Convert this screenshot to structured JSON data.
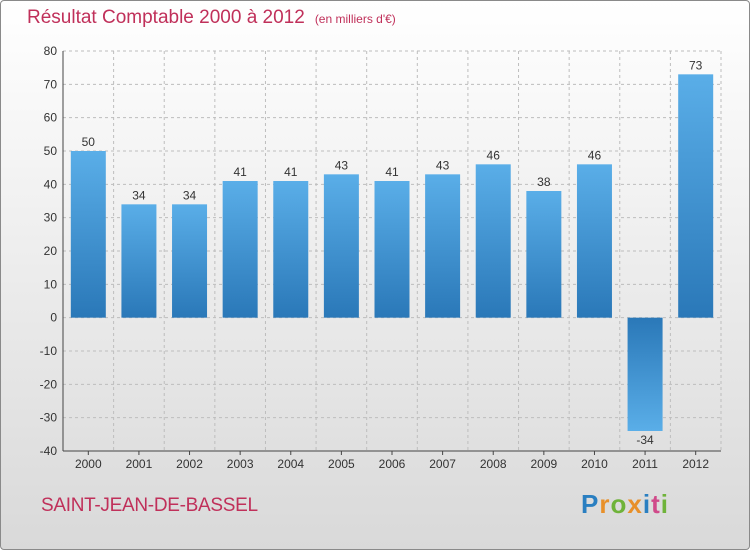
{
  "header": {
    "title": "Résultat Comptable 2000 à 2012",
    "unit": "(en milliers d'€)"
  },
  "footer": {
    "commune": "SAINT-JEAN-DE-BASSEL",
    "logo_text": "Proxiti",
    "logo_letters": [
      {
        "ch": "P",
        "color": "#2a7fc1"
      },
      {
        "ch": "r",
        "color": "#e8902a"
      },
      {
        "ch": "o",
        "color": "#6fb33a"
      },
      {
        "ch": "x",
        "color": "#e8902a"
      },
      {
        "ch": "i",
        "color": "#2a7fc1"
      },
      {
        "ch": "t",
        "color": "#d04a8a"
      },
      {
        "ch": "i",
        "color": "#6fb33a"
      }
    ]
  },
  "colors": {
    "title": "#c0305a",
    "bar_light": "#5aaee8",
    "bar_dark": "#2a78b8",
    "grid": "#bdbdbd"
  },
  "chart_data": {
    "type": "bar",
    "title": "Résultat Comptable 2000 à 2012",
    "ylabel": "en milliers d'€",
    "xlabel": "",
    "categories": [
      "2000",
      "2001",
      "2002",
      "2003",
      "2004",
      "2005",
      "2006",
      "2007",
      "2008",
      "2009",
      "2010",
      "2011",
      "2012"
    ],
    "values": [
      50,
      34,
      34,
      41,
      41,
      43,
      41,
      43,
      46,
      38,
      46,
      -34,
      73
    ],
    "ylim": [
      -40,
      80
    ],
    "yticks": [
      80,
      70,
      60,
      50,
      40,
      30,
      20,
      10,
      0,
      -10,
      -20,
      -30,
      -40
    ],
    "grid": true
  }
}
